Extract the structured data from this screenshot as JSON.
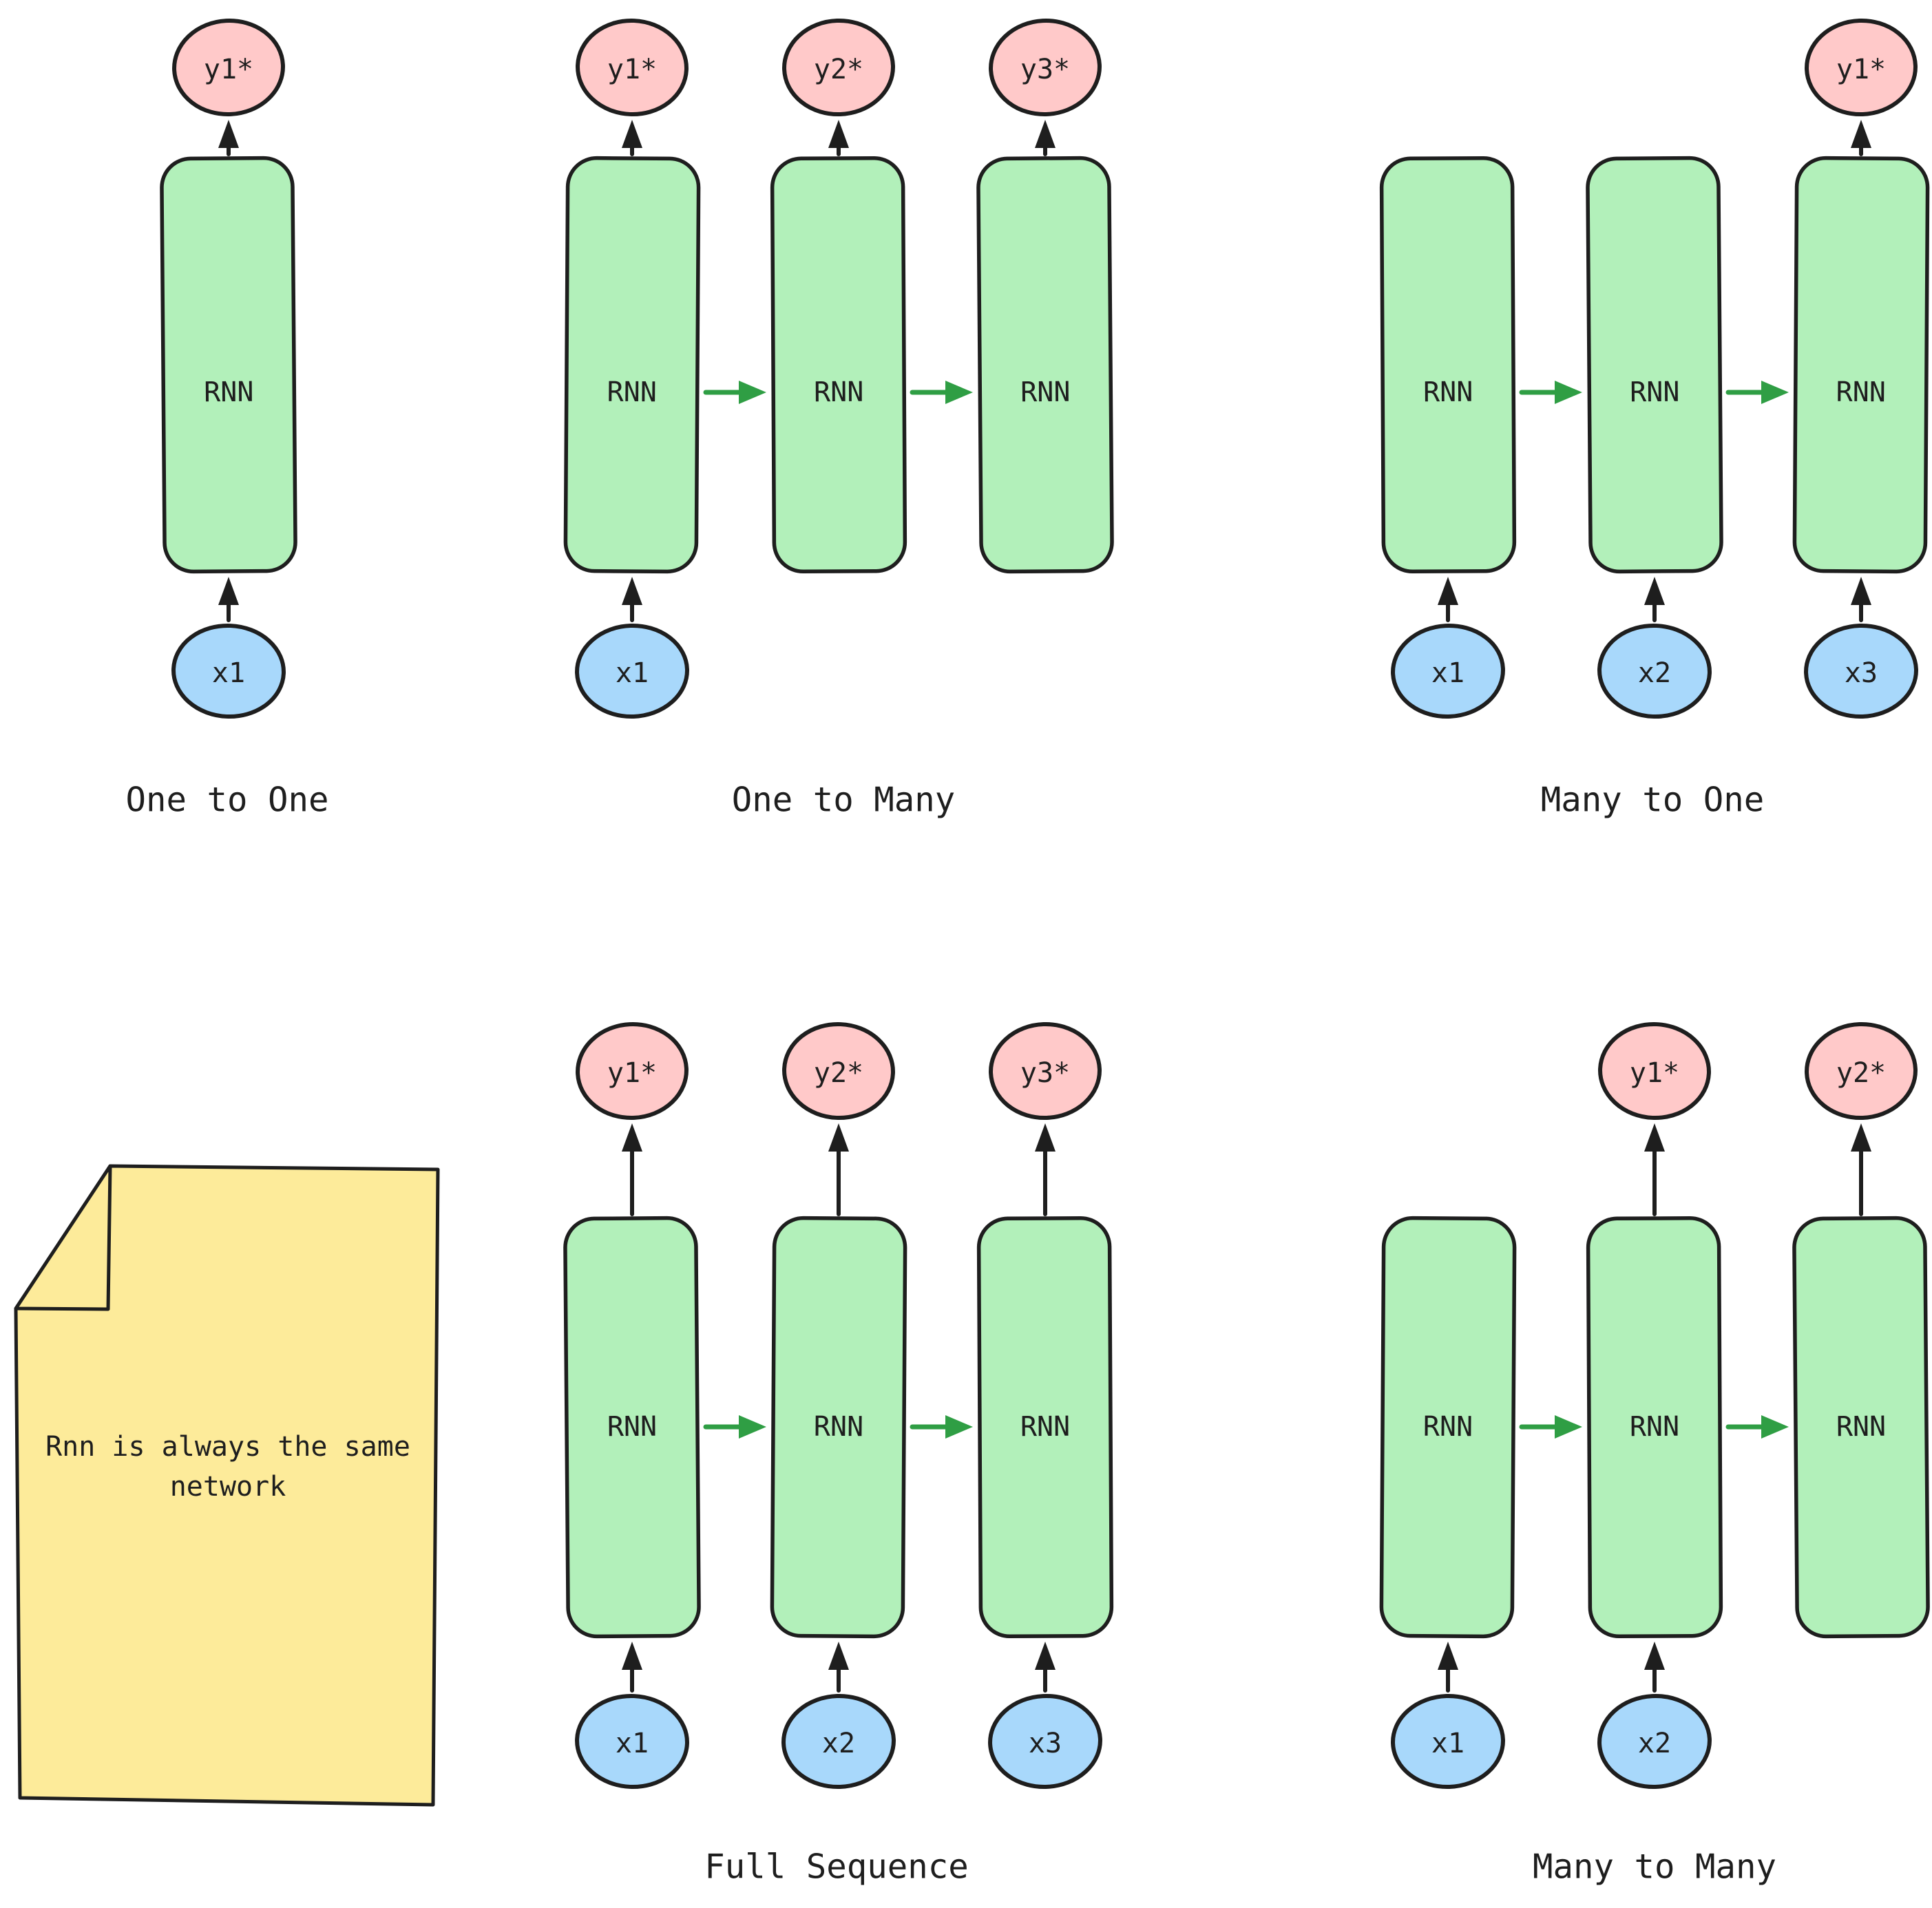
{
  "palette": {
    "background": "#ffffff",
    "stroke": "#1e1e1e",
    "box_fill": "#b2f0ba",
    "input_fill": "#a8d8fb",
    "output_fill": "#ffc9c9",
    "note_fill": "#fdeb9a",
    "flow_arrow": "#2f9e44",
    "text": "#1e1e1e"
  },
  "rnn_label": "RNN",
  "sections": [
    {
      "id": "one-to-one",
      "label": "One to One",
      "row": 0,
      "inputs": [
        {
          "col": 0,
          "label": "x1"
        }
      ],
      "outputs": [
        {
          "col": 0,
          "label": "y1*"
        }
      ]
    },
    {
      "id": "one-to-many",
      "label": "One to Many",
      "row": 0,
      "inputs": [
        {
          "col": 0,
          "label": "x1"
        }
      ],
      "outputs": [
        {
          "col": 0,
          "label": "y1*"
        },
        {
          "col": 1,
          "label": "y2*"
        },
        {
          "col": 2,
          "label": "y3*"
        }
      ]
    },
    {
      "id": "many-to-one",
      "label": "Many to One",
      "row": 0,
      "inputs": [
        {
          "col": 0,
          "label": "x1"
        },
        {
          "col": 1,
          "label": "x2"
        },
        {
          "col": 2,
          "label": "x3"
        }
      ],
      "outputs": [
        {
          "col": 2,
          "label": "y1*"
        }
      ]
    },
    {
      "id": "full-sequence",
      "label": "Full Sequence",
      "row": 1,
      "inputs": [
        {
          "col": 0,
          "label": "x1"
        },
        {
          "col": 1,
          "label": "x2"
        },
        {
          "col": 2,
          "label": "x3"
        }
      ],
      "outputs": [
        {
          "col": 0,
          "label": "y1*"
        },
        {
          "col": 1,
          "label": "y2*"
        },
        {
          "col": 2,
          "label": "y3*"
        }
      ]
    },
    {
      "id": "many-to-many",
      "label": "Many to Many",
      "row": 1,
      "inputs": [
        {
          "col": 0,
          "label": "x1"
        },
        {
          "col": 1,
          "label": "x2"
        }
      ],
      "outputs": [
        {
          "col": 1,
          "label": "y1*"
        },
        {
          "col": 2,
          "label": "y2*"
        }
      ]
    }
  ],
  "note": {
    "lines": [
      "Rnn is always the same",
      "network"
    ]
  }
}
